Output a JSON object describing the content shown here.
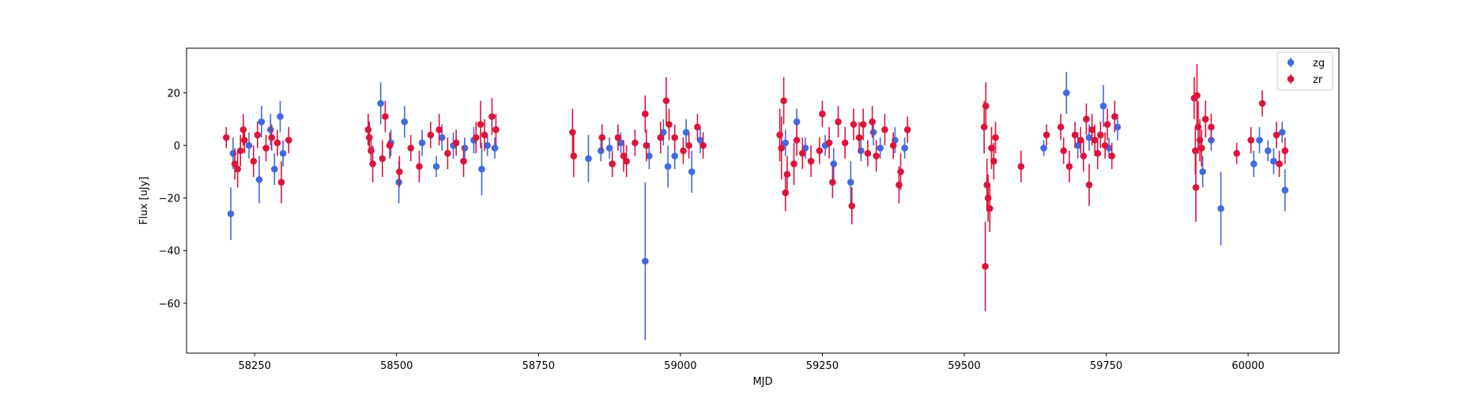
{
  "chart_data": {
    "type": "scatter",
    "title": "",
    "xlabel": "MJD",
    "ylabel": "Flux [uJy]",
    "xlim": [
      58130,
      60160
    ],
    "ylim": [
      -79,
      37
    ],
    "xticks": [
      58250,
      58500,
      58750,
      59000,
      59250,
      59500,
      59750,
      60000
    ],
    "yticks": [
      -60,
      -40,
      -20,
      0,
      20
    ],
    "grid": false,
    "legend_position": "top-right",
    "series": [
      {
        "name": "zg",
        "color": "#4169e1",
        "points": [
          {
            "x": 58208,
            "y": -26,
            "err": 10
          },
          {
            "x": 58212,
            "y": -3,
            "err": 6
          },
          {
            "x": 58240,
            "y": 0,
            "err": 5
          },
          {
            "x": 58258,
            "y": -13,
            "err": 9
          },
          {
            "x": 58262,
            "y": 9,
            "err": 6
          },
          {
            "x": 58278,
            "y": 6,
            "err": 6
          },
          {
            "x": 58285,
            "y": -9,
            "err": 6
          },
          {
            "x": 58295,
            "y": 11,
            "err": 6
          },
          {
            "x": 58300,
            "y": -3,
            "err": 5
          },
          {
            "x": 58472,
            "y": 16,
            "err": 8
          },
          {
            "x": 58490,
            "y": 1,
            "err": 5
          },
          {
            "x": 58504,
            "y": -14,
            "err": 8
          },
          {
            "x": 58514,
            "y": 9,
            "err": 6
          },
          {
            "x": 58545,
            "y": 1,
            "err": 5
          },
          {
            "x": 58570,
            "y": -8,
            "err": 4
          },
          {
            "x": 58580,
            "y": 3,
            "err": 5
          },
          {
            "x": 58600,
            "y": 0,
            "err": 5
          },
          {
            "x": 58620,
            "y": -1,
            "err": 4
          },
          {
            "x": 58636,
            "y": 2,
            "err": 5
          },
          {
            "x": 58650,
            "y": -9,
            "err": 10
          },
          {
            "x": 58660,
            "y": 0,
            "err": 4
          },
          {
            "x": 58673,
            "y": -1,
            "err": 4
          },
          {
            "x": 58838,
            "y": -5,
            "err": 9
          },
          {
            "x": 58860,
            "y": -2,
            "err": 4
          },
          {
            "x": 58875,
            "y": -1,
            "err": 4
          },
          {
            "x": 58895,
            "y": 1,
            "err": 4
          },
          {
            "x": 58938,
            "y": -44,
            "err": 30
          },
          {
            "x": 58945,
            "y": -4,
            "err": 5
          },
          {
            "x": 58970,
            "y": 5,
            "err": 5
          },
          {
            "x": 58978,
            "y": -8,
            "err": 8
          },
          {
            "x": 58990,
            "y": -4,
            "err": 5
          },
          {
            "x": 59010,
            "y": 5,
            "err": 5
          },
          {
            "x": 59020,
            "y": -10,
            "err": 8
          },
          {
            "x": 59035,
            "y": 2,
            "err": 5
          },
          {
            "x": 59185,
            "y": 1,
            "err": 5
          },
          {
            "x": 59205,
            "y": 9,
            "err": 5
          },
          {
            "x": 59220,
            "y": -1,
            "err": 4
          },
          {
            "x": 59255,
            "y": 0,
            "err": 4
          },
          {
            "x": 59270,
            "y": -7,
            "err": 6
          },
          {
            "x": 59300,
            "y": -14,
            "err": 8
          },
          {
            "x": 59318,
            "y": -2,
            "err": 4
          },
          {
            "x": 59340,
            "y": 5,
            "err": 5
          },
          {
            "x": 59352,
            "y": -1,
            "err": 4
          },
          {
            "x": 59378,
            "y": 2,
            "err": 5
          },
          {
            "x": 59395,
            "y": -1,
            "err": 4
          },
          {
            "x": 59640,
            "y": -1,
            "err": 3
          },
          {
            "x": 59680,
            "y": 20,
            "err": 8
          },
          {
            "x": 59700,
            "y": 0,
            "err": 5
          },
          {
            "x": 59720,
            "y": 3,
            "err": 5
          },
          {
            "x": 59745,
            "y": 15,
            "err": 8
          },
          {
            "x": 59755,
            "y": -1,
            "err": 4
          },
          {
            "x": 59770,
            "y": 7,
            "err": 5
          },
          {
            "x": 59920,
            "y": -10,
            "err": 6
          },
          {
            "x": 59935,
            "y": 2,
            "err": 4
          },
          {
            "x": 59952,
            "y": -24,
            "err": 14
          },
          {
            "x": 60010,
            "y": -7,
            "err": 5
          },
          {
            "x": 60020,
            "y": 2,
            "err": 5
          },
          {
            "x": 60035,
            "y": -2,
            "err": 4
          },
          {
            "x": 60045,
            "y": -6,
            "err": 5
          },
          {
            "x": 60060,
            "y": 5,
            "err": 4
          },
          {
            "x": 60065,
            "y": -17,
            "err": 8
          }
        ]
      },
      {
        "name": "zr",
        "color": "#dc143c",
        "points": [
          {
            "x": 58200,
            "y": 3,
            "err": 4
          },
          {
            "x": 58215,
            "y": -7,
            "err": 6
          },
          {
            "x": 58220,
            "y": -9,
            "err": 7
          },
          {
            "x": 58225,
            "y": -2,
            "err": 6
          },
          {
            "x": 58230,
            "y": 6,
            "err": 6
          },
          {
            "x": 58232,
            "y": 2,
            "err": 5
          },
          {
            "x": 58248,
            "y": -6,
            "err": 6
          },
          {
            "x": 58255,
            "y": 4,
            "err": 5
          },
          {
            "x": 58270,
            "y": -1,
            "err": 5
          },
          {
            "x": 58280,
            "y": 3,
            "err": 5
          },
          {
            "x": 58290,
            "y": 1,
            "err": 5
          },
          {
            "x": 58297,
            "y": -14,
            "err": 8
          },
          {
            "x": 58310,
            "y": 2,
            "err": 5
          },
          {
            "x": 58450,
            "y": 6,
            "err": 6
          },
          {
            "x": 58452,
            "y": 3,
            "err": 6
          },
          {
            "x": 58455,
            "y": -2,
            "err": 6
          },
          {
            "x": 58458,
            "y": -7,
            "err": 7
          },
          {
            "x": 58475,
            "y": -5,
            "err": 7
          },
          {
            "x": 58480,
            "y": 11,
            "err": 6
          },
          {
            "x": 58488,
            "y": 0,
            "err": 5
          },
          {
            "x": 58505,
            "y": -10,
            "err": 6
          },
          {
            "x": 58525,
            "y": -1,
            "err": 5
          },
          {
            "x": 58540,
            "y": -8,
            "err": 6
          },
          {
            "x": 58560,
            "y": 4,
            "err": 5
          },
          {
            "x": 58575,
            "y": 6,
            "err": 6
          },
          {
            "x": 58590,
            "y": -3,
            "err": 6
          },
          {
            "x": 58605,
            "y": 1,
            "err": 5
          },
          {
            "x": 58618,
            "y": -6,
            "err": 6
          },
          {
            "x": 58640,
            "y": 3,
            "err": 6
          },
          {
            "x": 58648,
            "y": 8,
            "err": 9
          },
          {
            "x": 58655,
            "y": 4,
            "err": 6
          },
          {
            "x": 58668,
            "y": 11,
            "err": 7
          },
          {
            "x": 58675,
            "y": 6,
            "err": 6
          },
          {
            "x": 58810,
            "y": 5,
            "err": 9
          },
          {
            "x": 58812,
            "y": -4,
            "err": 8
          },
          {
            "x": 58862,
            "y": 3,
            "err": 5
          },
          {
            "x": 58880,
            "y": -7,
            "err": 5
          },
          {
            "x": 58890,
            "y": 3,
            "err": 5
          },
          {
            "x": 58900,
            "y": -4,
            "err": 6
          },
          {
            "x": 58905,
            "y": -6,
            "err": 6
          },
          {
            "x": 58920,
            "y": 1,
            "err": 5
          },
          {
            "x": 58938,
            "y": 12,
            "err": 7
          },
          {
            "x": 58940,
            "y": 0,
            "err": 6
          },
          {
            "x": 58965,
            "y": 3,
            "err": 6
          },
          {
            "x": 58975,
            "y": 17,
            "err": 9
          },
          {
            "x": 58980,
            "y": 8,
            "err": 6
          },
          {
            "x": 58990,
            "y": 3,
            "err": 5
          },
          {
            "x": 59005,
            "y": -2,
            "err": 5
          },
          {
            "x": 59015,
            "y": 0,
            "err": 5
          },
          {
            "x": 59030,
            "y": 7,
            "err": 5
          },
          {
            "x": 59040,
            "y": 0,
            "err": 5
          },
          {
            "x": 59175,
            "y": 4,
            "err": 10
          },
          {
            "x": 59178,
            "y": -1,
            "err": 12
          },
          {
            "x": 59182,
            "y": 17,
            "err": 9
          },
          {
            "x": 59185,
            "y": -18,
            "err": 7
          },
          {
            "x": 59188,
            "y": -11,
            "err": 7
          },
          {
            "x": 59200,
            "y": -7,
            "err": 8
          },
          {
            "x": 59205,
            "y": 2,
            "err": 6
          },
          {
            "x": 59215,
            "y": -3,
            "err": 6
          },
          {
            "x": 59230,
            "y": -6,
            "err": 6
          },
          {
            "x": 59245,
            "y": -2,
            "err": 5
          },
          {
            "x": 59250,
            "y": 12,
            "err": 5
          },
          {
            "x": 59262,
            "y": 1,
            "err": 6
          },
          {
            "x": 59268,
            "y": -14,
            "err": 6
          },
          {
            "x": 59278,
            "y": 9,
            "err": 6
          },
          {
            "x": 59290,
            "y": 1,
            "err": 6
          },
          {
            "x": 59302,
            "y": -23,
            "err": 7
          },
          {
            "x": 59305,
            "y": 8,
            "err": 6
          },
          {
            "x": 59315,
            "y": 3,
            "err": 6
          },
          {
            "x": 59322,
            "y": 8,
            "err": 6
          },
          {
            "x": 59330,
            "y": -3,
            "err": 5
          },
          {
            "x": 59338,
            "y": 9,
            "err": 6
          },
          {
            "x": 59345,
            "y": -4,
            "err": 6
          },
          {
            "x": 59360,
            "y": 6,
            "err": 6
          },
          {
            "x": 59375,
            "y": 0,
            "err": 5
          },
          {
            "x": 59385,
            "y": -15,
            "err": 7
          },
          {
            "x": 59388,
            "y": -10,
            "err": 7
          },
          {
            "x": 59400,
            "y": 6,
            "err": 5
          },
          {
            "x": 59535,
            "y": 7,
            "err": 10
          },
          {
            "x": 59537,
            "y": -46,
            "err": 17
          },
          {
            "x": 59538,
            "y": 15,
            "err": 9
          },
          {
            "x": 59540,
            "y": -15,
            "err": 10
          },
          {
            "x": 59542,
            "y": -20,
            "err": 9
          },
          {
            "x": 59545,
            "y": -24,
            "err": 9
          },
          {
            "x": 59548,
            "y": -1,
            "err": 8
          },
          {
            "x": 59552,
            "y": -6,
            "err": 7
          },
          {
            "x": 59555,
            "y": 3,
            "err": 6
          },
          {
            "x": 59600,
            "y": -8,
            "err": 6
          },
          {
            "x": 59645,
            "y": 4,
            "err": 4
          },
          {
            "x": 59670,
            "y": 7,
            "err": 5
          },
          {
            "x": 59675,
            "y": -2,
            "err": 5
          },
          {
            "x": 59685,
            "y": -8,
            "err": 6
          },
          {
            "x": 59695,
            "y": 4,
            "err": 5
          },
          {
            "x": 59705,
            "y": 2,
            "err": 5
          },
          {
            "x": 59710,
            "y": -4,
            "err": 6
          },
          {
            "x": 59715,
            "y": 10,
            "err": 6
          },
          {
            "x": 59720,
            "y": -15,
            "err": 8
          },
          {
            "x": 59725,
            "y": 6,
            "err": 6
          },
          {
            "x": 59730,
            "y": 2,
            "err": 6
          },
          {
            "x": 59735,
            "y": -3,
            "err": 6
          },
          {
            "x": 59740,
            "y": 4,
            "err": 5
          },
          {
            "x": 59748,
            "y": 0,
            "err": 5
          },
          {
            "x": 59752,
            "y": 8,
            "err": 6
          },
          {
            "x": 59760,
            "y": -4,
            "err": 5
          },
          {
            "x": 59765,
            "y": 11,
            "err": 6
          },
          {
            "x": 59905,
            "y": 18,
            "err": 8
          },
          {
            "x": 59907,
            "y": -2,
            "err": 9
          },
          {
            "x": 59908,
            "y": -16,
            "err": 13
          },
          {
            "x": 59910,
            "y": 19,
            "err": 12
          },
          {
            "x": 59912,
            "y": 7,
            "err": 10
          },
          {
            "x": 59915,
            "y": 2,
            "err": 8
          },
          {
            "x": 59918,
            "y": -1,
            "err": 7
          },
          {
            "x": 59925,
            "y": 10,
            "err": 7
          },
          {
            "x": 59935,
            "y": 7,
            "err": 5
          },
          {
            "x": 59980,
            "y": -3,
            "err": 4
          },
          {
            "x": 60005,
            "y": 2,
            "err": 5
          },
          {
            "x": 60025,
            "y": 16,
            "err": 5
          },
          {
            "x": 60050,
            "y": 4,
            "err": 5
          },
          {
            "x": 60055,
            "y": -7,
            "err": 5
          },
          {
            "x": 60065,
            "y": -2,
            "err": 5
          }
        ]
      }
    ]
  }
}
